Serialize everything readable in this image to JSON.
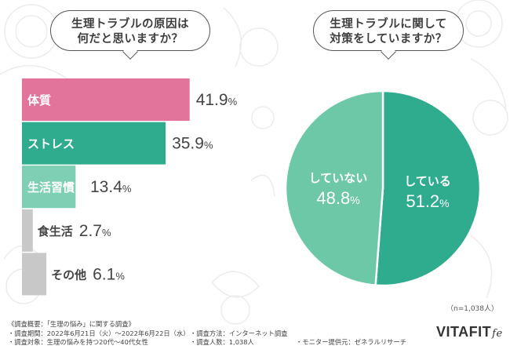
{
  "left_question": {
    "line1": "生理トラブルの原因は",
    "line2": "何だと思いますか？"
  },
  "right_question": {
    "line1": "生理トラブルに関して",
    "line2": "対策をしていますか？"
  },
  "chart_data": [
    {
      "type": "bar",
      "orientation": "horizontal",
      "categories": [
        "体質",
        "ストレス",
        "生活習慣",
        "食生活",
        "その他"
      ],
      "values": [
        41.9,
        35.9,
        13.4,
        2.7,
        6.1
      ],
      "value_labels": [
        "41.9%",
        "35.9%",
        "13.4%",
        "2.7%",
        "6.1%"
      ],
      "unit": "%",
      "colors": [
        "#e2739a",
        "#2fab8d",
        "#7fcfb4",
        "#c8c8c8",
        "#c8c8c8"
      ]
    },
    {
      "type": "pie",
      "categories": [
        "している",
        "していない"
      ],
      "values": [
        51.2,
        48.8
      ],
      "value_labels": [
        "51.2%",
        "48.8%"
      ],
      "unit": "%",
      "colors": [
        "#2fab8d",
        "#6dc8a8"
      ]
    }
  ],
  "sample_size": "（n=1,038人）",
  "footer": {
    "title": "《調査概要：「生理の悩み」に関する調査》",
    "period": "・調査期間：2022年6月21日（火）～2022年6月22日（水）",
    "method": "・調査方法：インターネット調査",
    "target": "・調査対象：生理の悩みを持つ20代～40代女性",
    "count": "・調査人数：1,038人",
    "provider": "・モニター提供元：ゼネラルリサーチ"
  },
  "brand": {
    "name": "VITAFIT",
    "suffix": "fe"
  }
}
